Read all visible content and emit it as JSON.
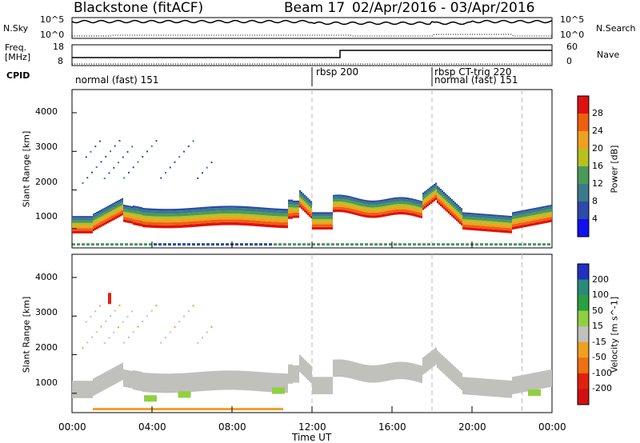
{
  "header": {
    "station": "Blackstone (fitACF)",
    "beam": "Beam 17",
    "range": "02/Apr/2016 - 03/Apr/2016"
  },
  "top_panels": {
    "nsky_label": "N.Sky",
    "nsky_hi": "10^5",
    "nsky_lo": "10^0",
    "nsearch_label": "N.Search",
    "nsearch_hi": "10^5",
    "nsearch_lo": "10^0",
    "freq_label": "Freq.",
    "freq_units": "[MHz]",
    "freq_hi": "18",
    "freq_lo": "8",
    "nave_label": "Nave",
    "nave_hi": "60",
    "nave_lo": "0",
    "cpid_label": "CPID",
    "cpid_segments": [
      {
        "label": "normal (fast) 151",
        "start_h": 0.0
      },
      {
        "label": "rbsp 200",
        "start_h": 12.0
      },
      {
        "label": "rbsp CT-trig 220",
        "start_h": 18.0
      },
      {
        "label": "normal (fast) 151",
        "start_h": 18.0
      }
    ]
  },
  "chart_data": [
    {
      "type": "heatmap",
      "panel": "power",
      "ylabel": "Slant Range [km]",
      "yticks": [
        "1000",
        "2000",
        "3000",
        "4000"
      ],
      "ylim": [
        500,
        4600
      ],
      "colorbar_label": "Power [dB]",
      "colorbar_ticks": [
        "4",
        "8",
        "12",
        "16",
        "20",
        "24",
        "28"
      ],
      "colorbar_colors": [
        "#1010ee",
        "#2c4aa8",
        "#3a7a8a",
        "#4a9a5a",
        "#b8c020",
        "#f0a020",
        "#ee6010",
        "#e01010"
      ]
    },
    {
      "type": "heatmap",
      "panel": "velocity",
      "ylabel": "Slant Range [km]",
      "yticks": [
        "1000",
        "2000",
        "3000",
        "4000"
      ],
      "ylim": [
        500,
        4600
      ],
      "colorbar_label": "Velocity [m s^-1]",
      "colorbar_ticks": [
        "200",
        "100",
        "50",
        "15",
        "-15",
        "-50",
        "-100",
        "-200"
      ],
      "colorbar_colors": [
        "#2030c0",
        "#2a8a7a",
        "#2aa040",
        "#90d040",
        "#c0c0bc",
        "#f0a020",
        "#ee7010",
        "#e02010",
        "#d01010"
      ]
    }
  ],
  "xaxis": {
    "label": "Time UT",
    "ticks": [
      "00:00",
      "04:00",
      "08:00",
      "12:00",
      "16:00",
      "20:00",
      "00:00"
    ]
  },
  "colors": {
    "gray_scatter": "#c0c0bc",
    "dashed_line": "#bbbbbb"
  }
}
